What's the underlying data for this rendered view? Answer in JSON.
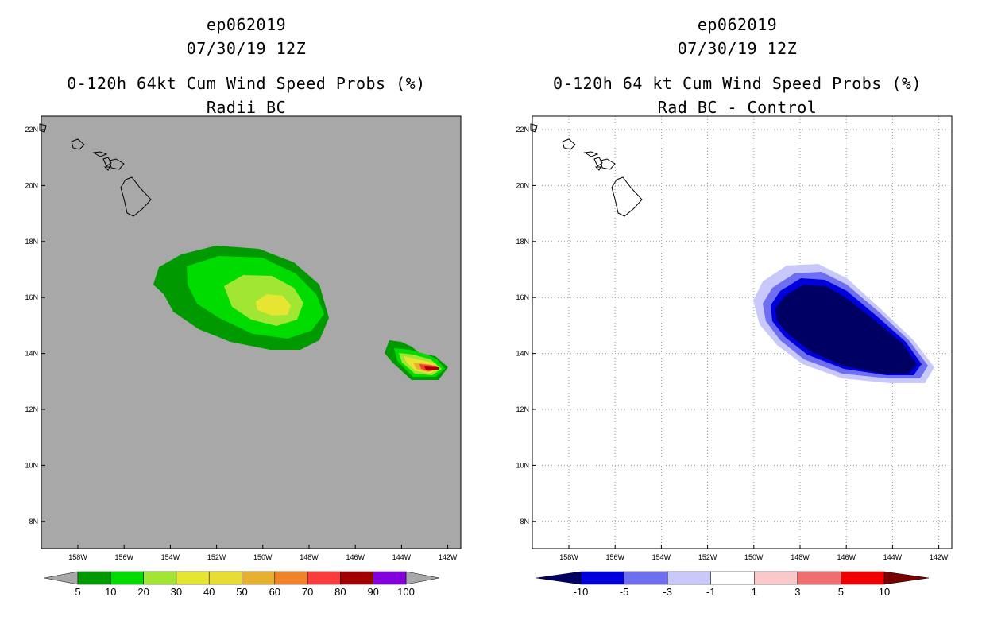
{
  "panels": [
    {
      "id": "left",
      "title_lines": [
        "ep062019",
        "07/30/19 12Z",
        "0-120h 64kt Cum Wind Speed Probs (%)",
        "Radii BC"
      ],
      "lon_ticks": [
        "158W",
        "156W",
        "154W",
        "152W",
        "150W",
        "148W",
        "146W",
        "144W",
        "142W"
      ],
      "lat_ticks": [
        "22N",
        "20N",
        "18N",
        "16N",
        "14N",
        "12N",
        "10N",
        "8N"
      ],
      "background": "#a8a8a8",
      "colorbar": {
        "labels": [
          "5",
          "10",
          "20",
          "30",
          "40",
          "50",
          "60",
          "70",
          "80",
          "90",
          "100"
        ],
        "colors": [
          "#009a00",
          "#00dc00",
          "#a0e632",
          "#e6e632",
          "#e6dc32",
          "#e6af2d",
          "#f08228",
          "#fa3c3c",
          "#a00000",
          "#8200dc"
        ],
        "end_color": "#a8a8a8"
      }
    },
    {
      "id": "right",
      "title_lines": [
        "ep062019",
        "07/30/19 12Z",
        "0-120h 64 kt Cum Wind Speed Probs (%)",
        "Rad BC - Control"
      ],
      "lon_ticks": [
        "158W",
        "156W",
        "154W",
        "152W",
        "150W",
        "148W",
        "146W",
        "144W",
        "142W"
      ],
      "lat_ticks": [
        "22N",
        "20N",
        "18N",
        "16N",
        "14N",
        "12N",
        "10N",
        "8N"
      ],
      "background": "#ffffff",
      "colorbar": {
        "labels": [
          "-10",
          "-5",
          "-3",
          "-1",
          "1",
          "3",
          "5",
          "10"
        ],
        "colors": [
          "#0000dc",
          "#6e6ef0",
          "#c8c8fa",
          "#ffffff",
          "#fac8c8",
          "#f06e6e",
          "#f00000"
        ],
        "end_left": "#000064",
        "end_right": "#780000"
      }
    }
  ]
}
